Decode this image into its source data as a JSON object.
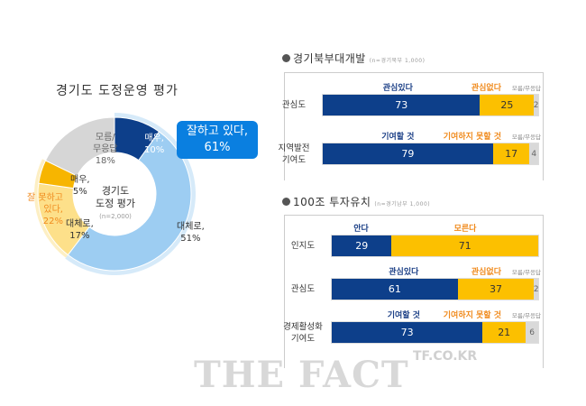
{
  "donut": {
    "title": "경기도 도정운영 평가",
    "center": {
      "line1": "경기도",
      "line2": "도정 평가",
      "n": "(n=2,000)"
    },
    "good_total": {
      "label": "잘하고 있다,",
      "value": "61%"
    },
    "bad_total": {
      "label1": "잘 못하고",
      "label2": "있다,",
      "value": "22%"
    }
  },
  "chart_data": [
    {
      "type": "pie",
      "title": "경기도 도정운영 평가",
      "subtitle": "(n=2,000)",
      "categories": [
        "매우, (잘하고 있다)",
        "대체로, (잘하고 있다)",
        "대체로, (잘 못하고 있다)",
        "매우, (잘 못하고 있다)",
        "모름/무응답"
      ],
      "slices": [
        {
          "label1": "매우,",
          "label2": "10%",
          "value": 10,
          "color": "#0d3f8a"
        },
        {
          "label1": "대체로,",
          "label2": "51%",
          "value": 51,
          "color": "#9dcdf2"
        },
        {
          "label1": "대체로,",
          "label2": "17%",
          "value": 17,
          "color": "#fde08a"
        },
        {
          "label1": "매우,",
          "label2": "5%",
          "value": 5,
          "color": "#f7b500"
        },
        {
          "label1": "모름/",
          "label2": "무응답",
          "label3": "18%",
          "value": 18,
          "color": "#d6d6d6"
        }
      ]
    },
    {
      "type": "bar",
      "stacked": true,
      "title": "경기북부대개발",
      "subtitle": "(n=경기북부 1,000)",
      "rows": [
        {
          "label": "관심도",
          "heads": [
            "관심있다",
            "관심없다",
            "모름/무응답"
          ],
          "values": [
            73,
            25,
            2
          ]
        },
        {
          "label1": "지역발전",
          "label2": "기여도",
          "heads": [
            "기여할 것",
            "기여하지 못할 것",
            "모름/무응답"
          ],
          "values": [
            79,
            17,
            4
          ]
        }
      ]
    },
    {
      "type": "bar",
      "stacked": true,
      "title": "100조 투자유치",
      "subtitle": "(n=경기남부 1,000)",
      "rows": [
        {
          "label": "인지도",
          "heads": [
            "안다",
            "모른다"
          ],
          "values": [
            29,
            71
          ]
        },
        {
          "label": "관심도",
          "heads": [
            "관심있다",
            "관심없다",
            "모름/무응답"
          ],
          "values": [
            61,
            37,
            2
          ]
        },
        {
          "label1": "경제활성화",
          "label2": "기여도",
          "heads": [
            "기여할 것",
            "기여하지 못할 것",
            "모름/무응답"
          ],
          "values": [
            73,
            21,
            6
          ]
        }
      ]
    }
  ],
  "colors": {
    "navy": "#0d3f8a",
    "gold": "#fcc000",
    "grey": "#d9d9d9",
    "orange": "#f08a1c",
    "blue_box": "#0a7fe0"
  },
  "watermark": {
    "small": "TF.CO.KR",
    "large": "THE FACT"
  }
}
